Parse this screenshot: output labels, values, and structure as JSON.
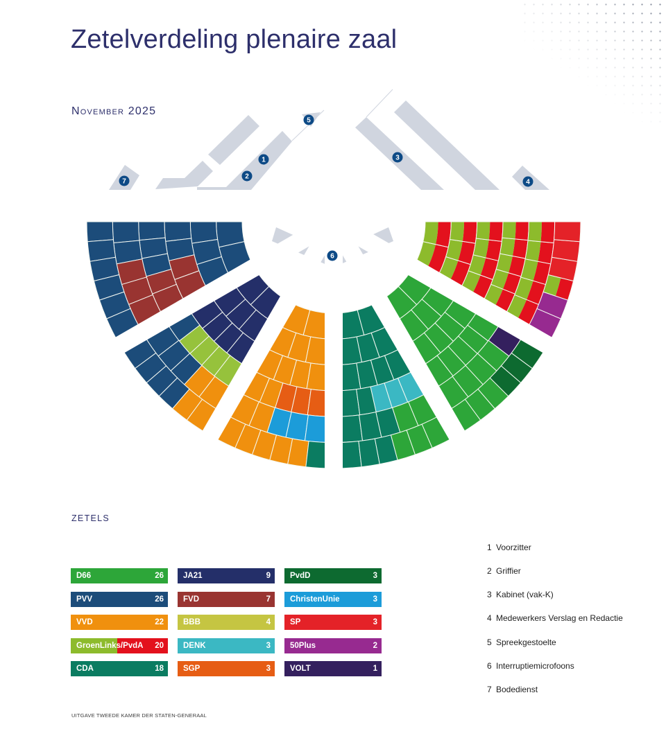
{
  "header": {
    "title": "Zetelverdeling plenaire zaal",
    "date": "November 2025"
  },
  "floorplan": {
    "furniture_color": "#d0d5df",
    "badge_color": "#0d4a86",
    "microphone_color": "#2a2f6e",
    "badges": [
      "1",
      "2",
      "3",
      "4",
      "5",
      "6",
      "7"
    ]
  },
  "legend_title": "ZETELS",
  "parties": [
    {
      "name": "D66",
      "seats": 26,
      "color": "#2da639"
    },
    {
      "name": "PVV",
      "seats": 26,
      "color": "#1c4c7a"
    },
    {
      "name": "VVD",
      "seats": 22,
      "color": "#f0900e"
    },
    {
      "name": "GroenLinks/PvdA",
      "seats": 20,
      "color": "#8dbb2c",
      "color2": "#e3111d"
    },
    {
      "name": "CDA",
      "seats": 18,
      "color": "#0b7c61"
    },
    {
      "name": "JA21",
      "seats": 9,
      "color": "#242f69"
    },
    {
      "name": "FVD",
      "seats": 7,
      "color": "#993431"
    },
    {
      "name": "BBB",
      "seats": 4,
      "color": "#c5c542",
      "seat_color": "#96c23c"
    },
    {
      "name": "DENK",
      "seats": 3,
      "color": "#3bb8c3"
    },
    {
      "name": "SGP",
      "seats": 3,
      "color": "#e65d14"
    },
    {
      "name": "PvdD",
      "seats": 3,
      "color": "#0d6a30"
    },
    {
      "name": "ChristenUnie",
      "seats": 3,
      "color": "#1c9cd9"
    },
    {
      "name": "SP",
      "seats": 3,
      "color": "#e42228"
    },
    {
      "name": "50Plus",
      "seats": 2,
      "color": "#972a90"
    },
    {
      "name": "VOLT",
      "seats": 1,
      "color": "#34205e"
    }
  ],
  "key": [
    {
      "num": "1",
      "label": "Voorzitter"
    },
    {
      "num": "2",
      "label": "Griffier"
    },
    {
      "num": "3",
      "label": "Kabinet (vak-K)"
    },
    {
      "num": "4",
      "label": "Medewerkers Verslag en Redactie"
    },
    {
      "num": "5",
      "label": "Spreekgestoelte"
    },
    {
      "num": "6",
      "label": "Interruptiemicrofoons"
    },
    {
      "num": "7",
      "label": "Bodedienst"
    }
  ],
  "footer": "UITGAVE TWEEDE KAMER DER STATEN-GENERAAL",
  "chamber": {
    "wedges": [
      {
        "rows": [
          [
            "PVV",
            "PVV"
          ],
          [
            "PVV",
            "PVV",
            "PVV"
          ],
          [
            "PVV",
            "PVV",
            "FVD",
            "FVD"
          ],
          [
            "PVV",
            "PVV",
            "PVV",
            "FVD",
            "FVD"
          ],
          [
            "PVV",
            "PVV",
            "FVD",
            "FVD",
            "FVD"
          ],
          [
            "PVV",
            "PVV",
            "PVV",
            "PVV",
            "PVV",
            "PVV"
          ]
        ]
      },
      {
        "rows": [
          [
            "JA21",
            "JA21"
          ],
          [
            "JA21",
            "JA21",
            "JA21"
          ],
          [
            "JA21",
            "JA21",
            "JA21",
            "JA21"
          ],
          [
            "PVV",
            "BBB",
            "BBB",
            "BBB",
            "BBB"
          ],
          [
            "PVV",
            "PVV",
            "PVV",
            "VVD",
            "VVD"
          ],
          [
            "PVV",
            "PVV",
            "PVV",
            "PVV",
            "VVD",
            "VVD"
          ]
        ]
      },
      {
        "rows": [
          [
            "VVD",
            "VVD"
          ],
          [
            "VVD",
            "VVD",
            "VVD"
          ],
          [
            "VVD",
            "VVD",
            "VVD",
            "VVD"
          ],
          [
            "VVD",
            "VVD",
            "SGP",
            "SGP",
            "SGP"
          ],
          [
            "VVD",
            "VVD",
            "ChristenUnie",
            "ChristenUnie",
            "ChristenUnie"
          ],
          [
            "VVD",
            "VVD",
            "VVD",
            "VVD",
            "VVD",
            "CDA"
          ]
        ]
      },
      {
        "rows": [
          [
            "CDA",
            "CDA"
          ],
          [
            "CDA",
            "CDA",
            "CDA"
          ],
          [
            "CDA",
            "CDA",
            "CDA",
            "CDA"
          ],
          [
            "CDA",
            "CDA",
            "DENK",
            "DENK",
            "DENK"
          ],
          [
            "CDA",
            "CDA",
            "CDA",
            "D66",
            "D66"
          ],
          [
            "CDA",
            "CDA",
            "CDA",
            "D66",
            "D66",
            "D66"
          ]
        ]
      },
      {
        "rows": [
          [
            "D66",
            "D66"
          ],
          [
            "D66",
            "D66",
            "D66"
          ],
          [
            "D66",
            "D66",
            "D66",
            "D66"
          ],
          [
            "D66",
            "D66",
            "D66",
            "D66",
            "D66"
          ],
          [
            "D66",
            "D66",
            "D66",
            "D66",
            "VOLT"
          ],
          [
            "D66",
            "D66",
            "D66",
            "PvdD",
            "PvdD",
            "PvdD"
          ]
        ]
      },
      {
        "rows": [
          [
            "GroenLinks/PvdA",
            "GroenLinks/PvdA"
          ],
          [
            "GroenLinks/PvdA",
            "GroenLinks/PvdA",
            "GroenLinks/PvdA"
          ],
          [
            "GroenLinks/PvdA",
            "GroenLinks/PvdA",
            "GroenLinks/PvdA",
            "GroenLinks/PvdA"
          ],
          [
            "GroenLinks/PvdA",
            "GroenLinks/PvdA",
            "GroenLinks/PvdA",
            "GroenLinks/PvdA",
            "GroenLinks/PvdA"
          ],
          [
            "GroenLinks/PvdA",
            "GroenLinks/PvdA",
            "GroenLinks/PvdA",
            "GroenLinks/PvdA",
            "GroenLinks/PvdA"
          ],
          [
            "50Plus",
            "50Plus",
            "GroenLinks/PvdA",
            "SP",
            "SP",
            "SP"
          ]
        ]
      }
    ]
  },
  "chart_data": {
    "type": "pie",
    "title": "Zetelverdeling plenaire zaal",
    "subtitle": "November 2025",
    "legend_title": "ZETELS",
    "categories": [
      "D66",
      "PVV",
      "VVD",
      "GroenLinks/PvdA",
      "CDA",
      "JA21",
      "FVD",
      "BBB",
      "DENK",
      "SGP",
      "PvdD",
      "ChristenUnie",
      "SP",
      "50Plus",
      "VOLT"
    ],
    "values": [
      26,
      26,
      22,
      20,
      18,
      9,
      7,
      4,
      3,
      3,
      3,
      3,
      3,
      2,
      1
    ],
    "legend_position": "bottom"
  }
}
